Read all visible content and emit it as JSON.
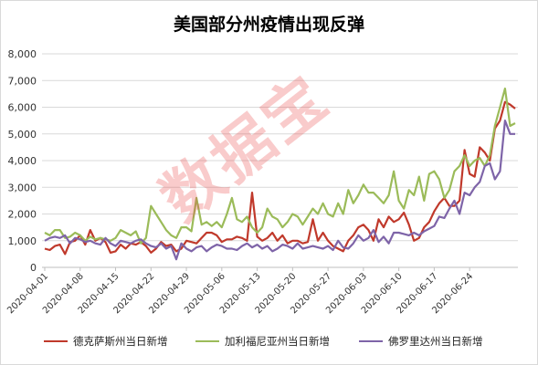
{
  "chart_data": {
    "type": "line",
    "title": "美国部分州疫情出现反弹",
    "xlabel": "",
    "ylabel": "",
    "ylim": [
      0,
      8000
    ],
    "yticks": [
      "0",
      "1,000",
      "2,000",
      "3,000",
      "4,000",
      "5,000",
      "6,000",
      "7,000",
      "8,000"
    ],
    "xticks": [
      "2020-04-01",
      "2020-04-08",
      "2020-04-15",
      "2020-04-22",
      "2020-04-29",
      "2020-05-06",
      "2020-05-13",
      "2020-05-20",
      "2020-05-27",
      "2020-06-03",
      "2020-06-10",
      "2020-06-17",
      "2020-06-24"
    ],
    "grid": "horizontal",
    "legend_position": "bottom",
    "start_date": "2020-04-01",
    "series": [
      {
        "name": "德克萨斯州当日新增",
        "color": "#c0392b",
        "values": [
          700,
          650,
          800,
          850,
          500,
          950,
          1000,
          1200,
          850,
          1400,
          1000,
          1100,
          950,
          550,
          600,
          850,
          700,
          900,
          850,
          950,
          800,
          550,
          700,
          950,
          800,
          850,
          600,
          700,
          1000,
          950,
          900,
          1100,
          1300,
          1300,
          1200,
          950,
          1050,
          1050,
          1150,
          1100,
          1000,
          2800,
          1150,
          1000,
          1100,
          1300,
          1000,
          1200,
          900,
          1000,
          1000,
          900,
          950,
          1800,
          1000,
          1300,
          1000,
          800,
          700,
          600,
          1000,
          1200,
          1500,
          1600,
          1400,
          1000,
          1800,
          1500,
          1900,
          1700,
          1800,
          2050,
          1600,
          1000,
          1100,
          1500,
          1700,
          2100,
          2400,
          2600,
          2300,
          2300,
          2500,
          4400,
          3500,
          3400,
          4500,
          4300,
          4000,
          5200,
          5500,
          6200,
          6100,
          5950
        ]
      },
      {
        "name": "加利福尼亚州当日新增",
        "color": "#9bbb59",
        "values": [
          1300,
          1200,
          1400,
          1400,
          1100,
          1150,
          1300,
          1200,
          1000,
          1150,
          1050,
          1100,
          1050,
          1000,
          1100,
          1400,
          1300,
          1200,
          1350,
          900,
          1100,
          2300,
          2000,
          1700,
          1400,
          1200,
          1100,
          1500,
          1500,
          1350,
          2600,
          1600,
          1700,
          1550,
          1700,
          1500,
          2000,
          2600,
          1800,
          1700,
          1900,
          1500,
          1300,
          1500,
          2200,
          1900,
          1800,
          1500,
          1700,
          2000,
          1900,
          1600,
          1900,
          2200,
          2000,
          2400,
          2000,
          1900,
          2400,
          2000,
          2900,
          2400,
          2700,
          3100,
          2800,
          2800,
          2600,
          2400,
          2700,
          3600,
          2500,
          2200,
          2900,
          2700,
          3400,
          2500,
          3500,
          3600,
          3300,
          2600,
          2900,
          3600,
          3800,
          4200,
          3800,
          4000,
          4100,
          3800,
          4200,
          5300,
          6000,
          6700,
          5300,
          5400
        ]
      },
      {
        "name": "佛罗里达州当日新增",
        "color": "#7e64a8",
        "values": [
          1000,
          1100,
          1150,
          1100,
          1200,
          900,
          1100,
          1050,
          950,
          1000,
          900,
          850,
          1100,
          900,
          800,
          1000,
          950,
          900,
          1000,
          1050,
          900,
          800,
          750,
          900,
          700,
          800,
          300,
          900,
          700,
          600,
          750,
          800,
          600,
          750,
          850,
          800,
          700,
          700,
          650,
          800,
          900,
          750,
          850,
          700,
          800,
          600,
          700,
          850,
          800,
          700,
          900,
          700,
          750,
          800,
          750,
          700,
          800,
          650,
          1000,
          750,
          700,
          900,
          1200,
          1000,
          1100,
          1400,
          950,
          1150,
          900,
          1300,
          1300,
          1250,
          1200,
          1300,
          1200,
          1350,
          1450,
          1550,
          1900,
          1850,
          2200,
          2500,
          2000,
          2800,
          2700,
          3000,
          3200,
          3800,
          3900,
          3300,
          3600,
          5500,
          5000,
          5000
        ]
      }
    ]
  },
  "watermark": "数据宝"
}
